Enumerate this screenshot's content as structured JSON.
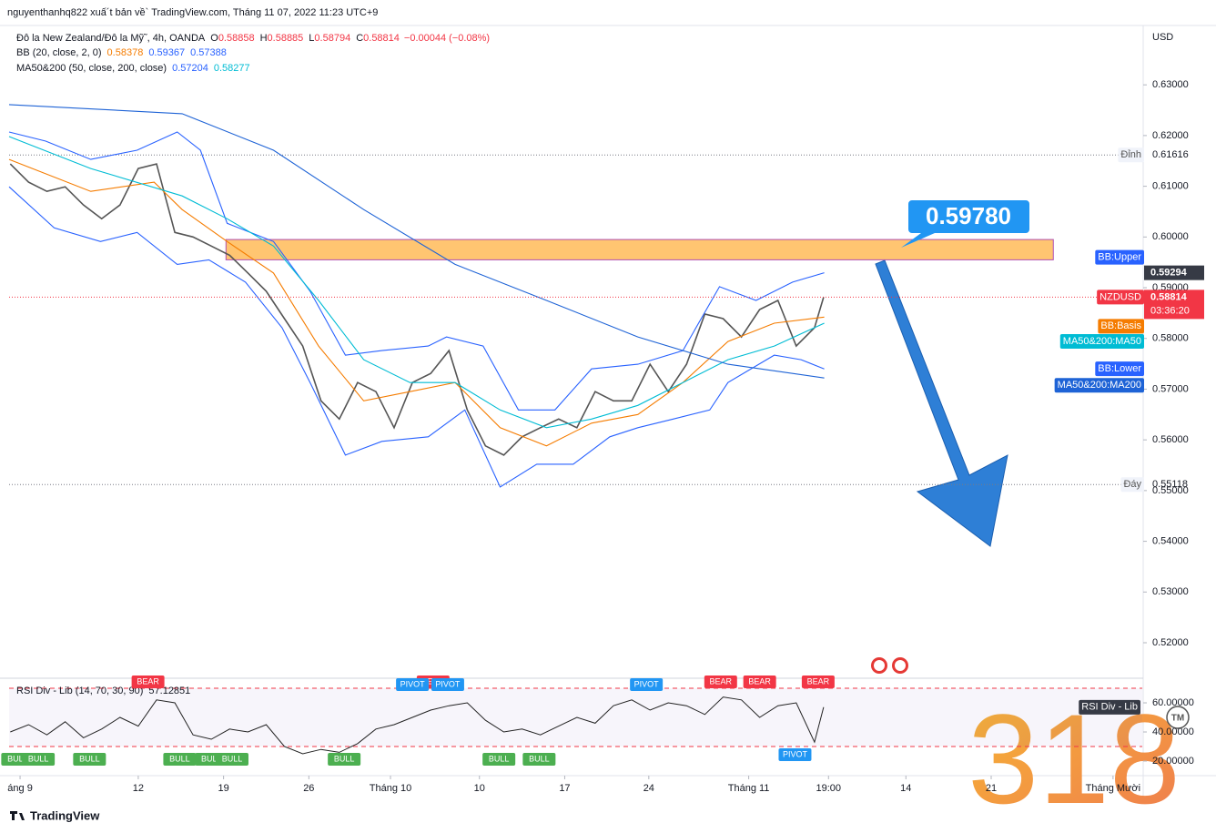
{
  "header": {
    "publisher": "nguyenthanhq822 xuấ´t bản về` TradingView.com, Tháng 11 07, 2022 11:23 UTC+9",
    "brand": "TradingView",
    "watermark": "318",
    "tm": "TM"
  },
  "chart_data": [
    {
      "type": "line",
      "currency": "USD",
      "legend": {
        "symbol": "Đô la New Zealand/Đô la Mỹ˜, 4h, OANDA",
        "ohlc": [
          {
            "label": "O",
            "value": 0.58858
          },
          {
            "label": "H",
            "value": 0.58885
          },
          {
            "label": "L",
            "value": 0.58794
          },
          {
            "label": "C",
            "value": 0.58814
          }
        ],
        "change": "−0.00044 (−0.08%)",
        "indicators": [
          {
            "name": "BB (20, close, 2, 0)",
            "values": [
              0.58378,
              0.59367,
              0.57388
            ],
            "colors": [
              "#f57c00",
              "#2962ff",
              "#2962ff"
            ]
          },
          {
            "name": "MA50&200 (50, close, 200, close)",
            "values": [
              0.57204,
              0.58277
            ],
            "colors": [
              "#2962ff",
              "#00bcd4"
            ]
          }
        ]
      },
      "xlim": [
        1.4,
        94.4
      ],
      "ylim": [
        0.513,
        0.6417
      ],
      "grid": false,
      "yticks": [
        {
          "value": 0.52,
          "label": "0.52000"
        },
        {
          "value": 0.53,
          "label": "0.53000"
        },
        {
          "value": 0.54,
          "label": "0.54000"
        },
        {
          "value": 0.55,
          "label": "0.55000"
        },
        {
          "value": 0.56,
          "label": "0.56000"
        },
        {
          "value": 0.57,
          "label": "0.57000"
        },
        {
          "value": 0.58,
          "label": "0.58000"
        },
        {
          "value": 0.59,
          "label": "0.59000"
        },
        {
          "value": 0.6,
          "label": "0.60000"
        },
        {
          "value": 0.61,
          "label": "0.61000"
        },
        {
          "value": 0.62,
          "label": "0.62000"
        },
        {
          "value": 0.63,
          "label": "0.63000"
        }
      ],
      "series": [
        {
          "name": "NZDUSD",
          "color": "#555555",
          "countdown": "03:36:20",
          "x": [
            1.5,
            3,
            4.5,
            6,
            7.5,
            9,
            10.5,
            12,
            13.5,
            15,
            16.5,
            18,
            19.5,
            21,
            22.5,
            24,
            25.5,
            27,
            28.5,
            30,
            31.5,
            33,
            34.5,
            36,
            37.5,
            39,
            40.5,
            42,
            43.5,
            45,
            46.5,
            48,
            49.5,
            51,
            52.5,
            54,
            55.5,
            57,
            58.5,
            60,
            61.5,
            63,
            64.5,
            66,
            67.5,
            68.25
          ],
          "values": [
            0.6144,
            0.6108,
            0.609,
            0.6099,
            0.6063,
            0.6036,
            0.6063,
            0.6135,
            0.6144,
            0.6009,
            0.6,
            0.5982,
            0.5964,
            0.5929,
            0.5893,
            0.5839,
            0.5785,
            0.5677,
            0.5641,
            0.5713,
            0.5695,
            0.5624,
            0.5713,
            0.5731,
            0.5776,
            0.5659,
            0.5588,
            0.557,
            0.5606,
            0.5624,
            0.5641,
            0.5624,
            0.5695,
            0.5677,
            0.5677,
            0.5749,
            0.5695,
            0.5749,
            0.5848,
            0.5839,
            0.5803,
            0.5857,
            0.5875,
            0.5785,
            0.5821,
            0.58814
          ]
        },
        {
          "name": "BB:Upper",
          "color": "#2962ff",
          "x": [
            1.4,
            4.4,
            8.1,
            11.9,
            15.2,
            17.1,
            19.3,
            23.1,
            26.1,
            29.0,
            32.0,
            35.8,
            37.3,
            40.3,
            43.2,
            46.2,
            49.2,
            53.0,
            56.7,
            59.7,
            62.7,
            65.7,
            68.3
          ],
          "values": [
            0.6207,
            0.6189,
            0.6153,
            0.6171,
            0.6207,
            0.6171,
            0.6027,
            0.5991,
            0.5893,
            0.5767,
            0.5776,
            0.5785,
            0.5803,
            0.5785,
            0.5659,
            0.5659,
            0.574,
            0.5749,
            0.5776,
            0.5902,
            0.5875,
            0.5911,
            0.59294
          ]
        },
        {
          "name": "BB:Basis",
          "color": "#f57c00",
          "x": [
            1.4,
            8.1,
            13.3,
            15.6,
            19.3,
            23.1,
            26.8,
            30.5,
            34.3,
            38.0,
            41.7,
            45.5,
            49.2,
            53.0,
            56.7,
            60.4,
            64.2,
            68.3
          ],
          "values": [
            0.6153,
            0.609,
            0.6108,
            0.6054,
            0.5991,
            0.5929,
            0.5785,
            0.5677,
            0.5695,
            0.5713,
            0.5624,
            0.5588,
            0.5633,
            0.565,
            0.5713,
            0.5794,
            0.583,
            0.5842
          ]
        },
        {
          "name": "MA50&200:MA50",
          "color": "#00bcd4",
          "x": [
            1.4,
            8.1,
            15.6,
            19.3,
            23.1,
            26.8,
            30.5,
            34.3,
            38.0,
            41.7,
            45.5,
            49.2,
            53.0,
            56.7,
            60.4,
            64.2,
            68.3
          ],
          "values": [
            0.6198,
            0.6135,
            0.6081,
            0.6036,
            0.5982,
            0.5875,
            0.5758,
            0.5713,
            0.5713,
            0.5659,
            0.5624,
            0.5641,
            0.5668,
            0.5713,
            0.5758,
            0.5785,
            0.583
          ]
        },
        {
          "name": "BB:Lower",
          "color": "#2962ff",
          "x": [
            1.4,
            5.1,
            8.9,
            11.9,
            15.2,
            17.8,
            20.8,
            23.8,
            26.1,
            29.0,
            32.0,
            35.8,
            38.8,
            41.7,
            44.7,
            47.7,
            50.7,
            53.0,
            55.9,
            58.9,
            60.4,
            64.2,
            66.4,
            68.3
          ],
          "values": [
            0.6099,
            0.6018,
            0.5991,
            0.6009,
            0.5946,
            0.5955,
            0.5911,
            0.5821,
            0.5713,
            0.557,
            0.5597,
            0.5606,
            0.5659,
            0.5507,
            0.5552,
            0.5552,
            0.5606,
            0.5624,
            0.5641,
            0.5659,
            0.5713,
            0.5767,
            0.5758,
            0.574
          ]
        },
        {
          "name": "MA50&200:MA200",
          "color": "#1e63d6",
          "x": [
            1.4,
            15.6,
            23.1,
            30.5,
            38.0,
            45.5,
            53.0,
            60.4,
            68.3
          ],
          "values": [
            0.6261,
            0.6243,
            0.6171,
            0.6054,
            0.5946,
            0.5875,
            0.5803,
            0.5749,
            0.5722
          ]
        }
      ],
      "levels": [
        {
          "label": "Đỉnh",
          "value": 0.61616
        },
        {
          "label": "Đáy",
          "value": 0.55118
        }
      ],
      "zone": {
        "x_start": 19.2,
        "x_end": 87.1,
        "low": 0.5955,
        "high": 0.5995,
        "target": {
          "value": 0.5978,
          "label": "0.59780"
        }
      }
    },
    {
      "type": "line",
      "title": "RSI Div - Lib (14, 70, 30, 90)",
      "last_value": 57.12851,
      "xlim": [
        1.4,
        94.4
      ],
      "ylim": [
        10,
        76.9
      ],
      "yticks": [
        {
          "value": 20,
          "label": "20.00000"
        },
        {
          "value": 40,
          "label": "40.00000"
        },
        {
          "value": 60,
          "label": "60.00000"
        }
      ],
      "bands": [
        70,
        30
      ],
      "xticks": [
        {
          "value": 2.3,
          "label": "áng 9"
        },
        12,
        19,
        26,
        {
          "value": 32.7,
          "label": "Tháng 10"
        },
        {
          "value": 40,
          "label": "10"
        },
        {
          "value": 47,
          "label": "17"
        },
        {
          "value": 53.9,
          "label": "24"
        },
        {
          "value": 62.1,
          "label": "Tháng 11"
        },
        {
          "value": 68.65,
          "label": "19:00"
        },
        {
          "value": 75,
          "label": "14"
        },
        {
          "value": 82,
          "label": "21"
        },
        {
          "value": 92,
          "label": "Tháng Mười"
        }
      ],
      "series": [
        {
          "name": "RSI Div - Lib",
          "color": "#222222",
          "x": [
            1.5,
            3,
            4.5,
            6,
            7.5,
            9,
            10.5,
            12,
            13.5,
            15,
            16.5,
            18,
            19.5,
            21,
            22.5,
            24,
            25.5,
            27,
            28.5,
            30,
            31.5,
            33,
            34.5,
            36,
            37.5,
            39,
            40.5,
            42,
            43.5,
            45,
            46.5,
            48,
            49.5,
            51,
            52.5,
            54,
            55.5,
            57,
            58.5,
            60,
            61.5,
            63,
            64.5,
            66,
            67.5,
            68.25
          ],
          "values": [
            40,
            45,
            38,
            47,
            36,
            42,
            50,
            44,
            62,
            60,
            38,
            35,
            42,
            40,
            45,
            30,
            25,
            28,
            26,
            32,
            42,
            45,
            50,
            55,
            58,
            60,
            48,
            40,
            42,
            38,
            44,
            50,
            46,
            58,
            62,
            55,
            60,
            58,
            52,
            64,
            62,
            50,
            58,
            60,
            33,
            57
          ]
        }
      ],
      "signal_labels": {
        "bull": "BULL",
        "bear": "BEAR",
        "pivot": "PIVOT"
      },
      "signals": {
        "bull": [
          2.1,
          3.8,
          8.0,
          15.4,
          18.0,
          19.7,
          28.9,
          41.6,
          44.9
        ],
        "bear": [
          12.8,
          36.2,
          59.8,
          63.0,
          67.8
        ],
        "pivot_top": [
          34.5,
          37.4,
          53.7
        ],
        "pivot_bottom": [
          65.9
        ]
      }
    }
  ]
}
